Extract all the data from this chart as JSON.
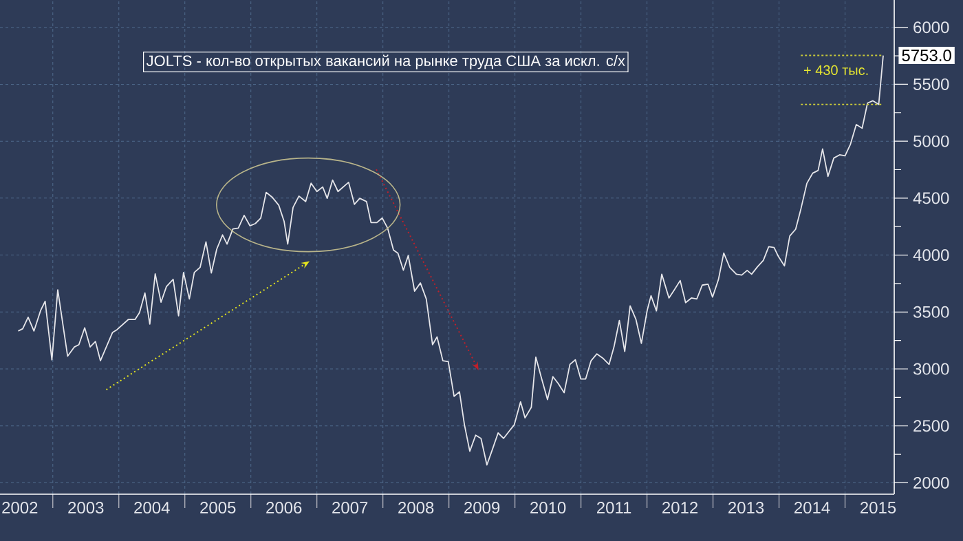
{
  "chart_data": {
    "type": "line",
    "title": "JOLTS - кол-во открытых вакансий на рынке труда США за искл. с/х",
    "x": [
      2002.476,
      2002.544,
      2002.626,
      2002.714,
      2002.816,
      2002.884,
      2002.986,
      2003.075,
      2003.224,
      2003.327,
      2003.395,
      2003.483,
      2003.565,
      2003.646,
      2003.721,
      2003.905,
      2003.973,
      2004.143,
      2004.245,
      2004.313,
      2004.395,
      2004.469,
      2004.551,
      2004.639,
      2004.721,
      2004.823,
      2004.905,
      2004.98,
      2005.068,
      2005.143,
      2005.231,
      2005.32,
      2005.401,
      2005.483,
      2005.571,
      2005.639,
      2005.728,
      2005.81,
      2005.898,
      2005.986,
      2006.068,
      2006.15,
      2006.231,
      2006.32,
      2006.422,
      2006.503,
      2006.558,
      2006.639,
      2006.728,
      2006.83,
      2006.912,
      2007.0,
      2007.088,
      2007.156,
      2007.238,
      2007.32,
      2007.48,
      2007.568,
      2007.65,
      2007.752,
      2007.82,
      2007.908,
      2007.99,
      2008.071,
      2008.16,
      2008.228,
      2008.31,
      2008.384,
      2008.48,
      2008.568,
      2008.657,
      2008.752,
      2008.82,
      2008.908,
      2008.99,
      2009.078,
      2009.16,
      2009.235,
      2009.316,
      2009.405,
      2009.486,
      2009.575,
      2009.656,
      2009.745,
      2009.827,
      2009.908,
      2009.99,
      2010.085,
      2010.153,
      2010.248,
      2010.316,
      2010.405,
      2010.493,
      2010.575,
      2010.656,
      2010.745,
      2010.833,
      2010.915,
      2010.997,
      2011.071,
      2011.153,
      2011.241,
      2011.337,
      2011.425,
      2011.5,
      2011.582,
      2011.663,
      2011.745,
      2011.833,
      2011.915,
      2012.003,
      2012.061,
      2012.143,
      2012.224,
      2012.333,
      2012.415,
      2012.503,
      2012.585,
      2012.673,
      2012.755,
      2012.837,
      2012.925,
      2012.993,
      2013.082,
      2013.163,
      2013.252,
      2013.354,
      2013.435,
      2013.517,
      2013.585,
      2013.673,
      2013.762,
      2013.844,
      2013.925,
      2013.993,
      2014.082,
      2014.163,
      2014.252,
      2014.333,
      2014.422,
      2014.51,
      2014.592,
      2014.66,
      2014.741,
      2014.83,
      2014.918,
      2015.0,
      2015.082,
      2015.17,
      2015.259,
      2015.34,
      2015.422,
      2015.51,
      2015.578
    ],
    "series": [
      {
        "color": "#e6e6ea",
        "values": [
          3333,
          3353,
          3454,
          3333,
          3514,
          3594,
          3080,
          3695,
          3112,
          3193,
          3213,
          3361,
          3193,
          3241,
          3072,
          3321,
          3345,
          3434,
          3434,
          3494,
          3667,
          3394,
          3835,
          3586,
          3723,
          3787,
          3466,
          3847,
          3614,
          3847,
          3892,
          4116,
          3843,
          4052,
          4177,
          4096,
          4229,
          4237,
          4349,
          4257,
          4277,
          4325,
          4550,
          4510,
          4438,
          4297,
          4096,
          4418,
          4518,
          4470,
          4631,
          4558,
          4598,
          4498,
          4659,
          4558,
          4639,
          4446,
          4498,
          4470,
          4285,
          4285,
          4325,
          4237,
          4044,
          4016,
          3867,
          3996,
          3683,
          3755,
          3614,
          3213,
          3281,
          3072,
          3064,
          2759,
          2799,
          2510,
          2277,
          2418,
          2390,
          2157,
          2289,
          2438,
          2390,
          2450,
          2510,
          2711,
          2570,
          2663,
          3104,
          2912,
          2731,
          2932,
          2872,
          2791,
          3040,
          3080,
          2912,
          2912,
          3072,
          3132,
          3092,
          3040,
          3193,
          3426,
          3153,
          3554,
          3434,
          3225,
          3514,
          3643,
          3510,
          3832,
          3623,
          3695,
          3776,
          3582,
          3623,
          3615,
          3736,
          3744,
          3631,
          3784,
          4018,
          3893,
          3832,
          3824,
          3865,
          3832,
          3897,
          3953,
          4074,
          4066,
          3985,
          3905,
          4167,
          4227,
          4409,
          4630,
          4719,
          4743,
          4932,
          4691,
          4852,
          4880,
          4872,
          4973,
          5146,
          5114,
          5335,
          5355,
          5323,
          5753
        ]
      }
    ],
    "xlim": [
      2002.2,
      2015.745
    ],
    "xticks": [
      {
        "value": 2003,
        "label": null
      },
      {
        "value": 2004,
        "label": null
      },
      {
        "value": 2005,
        "label": null
      },
      {
        "value": 2006,
        "label": null
      },
      {
        "value": 2007,
        "label": null
      },
      {
        "value": 2008,
        "label": null
      },
      {
        "value": 2009,
        "label": null
      },
      {
        "value": 2010,
        "label": null
      },
      {
        "value": 2011,
        "label": null
      },
      {
        "value": 2012,
        "label": null
      },
      {
        "value": 2013,
        "label": null
      },
      {
        "value": 2014,
        "label": null
      },
      {
        "value": 2015,
        "label": null
      },
      {
        "value": 2002.5,
        "label": "2002"
      },
      {
        "value": 2003.5,
        "label": "2003"
      },
      {
        "value": 2004.5,
        "label": "2004"
      },
      {
        "value": 2005.5,
        "label": "2005"
      },
      {
        "value": 2006.5,
        "label": "2006"
      },
      {
        "value": 2007.5,
        "label": "2007"
      },
      {
        "value": 2008.5,
        "label": "2008"
      },
      {
        "value": 2009.5,
        "label": "2009"
      },
      {
        "value": 2010.5,
        "label": "2010"
      },
      {
        "value": 2011.5,
        "label": "2011"
      },
      {
        "value": 2012.5,
        "label": "2012"
      },
      {
        "value": 2013.5,
        "label": "2013"
      },
      {
        "value": 2014.5,
        "label": "2014"
      },
      {
        "value": 2015.5,
        "label": "2015"
      }
    ],
    "ylim": [
      1900,
      6240
    ],
    "yticks": [
      2000,
      2500,
      3000,
      3500,
      4000,
      4500,
      5000,
      5500,
      6000
    ],
    "grid": true,
    "annotations": [
      "+ 430 тыс.",
      {
        "text": "5753.0",
        "x": 2015.578,
        "y": 5753
      }
    ]
  }
}
